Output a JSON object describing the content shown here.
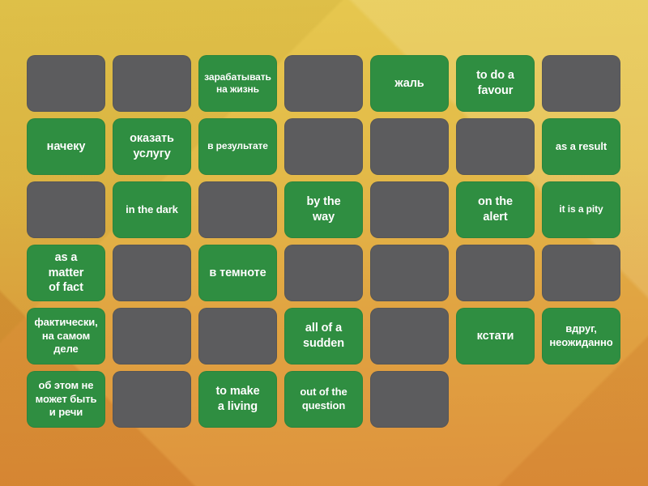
{
  "colors": {
    "card_revealed": "#2f8e41",
    "card_hidden": "#5c5c5e",
    "card_text": "#ffffff",
    "background_top": "#e6c84f",
    "background_bottom": "#de923d"
  },
  "board": {
    "rows": 6,
    "cols": 7,
    "cards": [
      {
        "row": 1,
        "col": 1,
        "state": "hidden",
        "text": ""
      },
      {
        "row": 1,
        "col": 2,
        "state": "hidden",
        "text": ""
      },
      {
        "row": 1,
        "col": 3,
        "state": "revealed",
        "text": "зарабатывать\nна жизнь"
      },
      {
        "row": 1,
        "col": 4,
        "state": "hidden",
        "text": ""
      },
      {
        "row": 1,
        "col": 5,
        "state": "revealed",
        "text": "жаль"
      },
      {
        "row": 1,
        "col": 6,
        "state": "revealed",
        "text": "to do a\nfavour"
      },
      {
        "row": 1,
        "col": 7,
        "state": "hidden",
        "text": ""
      },
      {
        "row": 2,
        "col": 1,
        "state": "revealed",
        "text": "начеку"
      },
      {
        "row": 2,
        "col": 2,
        "state": "revealed",
        "text": "оказать\nуслугу"
      },
      {
        "row": 2,
        "col": 3,
        "state": "revealed",
        "text": "в результате"
      },
      {
        "row": 2,
        "col": 4,
        "state": "hidden",
        "text": ""
      },
      {
        "row": 2,
        "col": 5,
        "state": "hidden",
        "text": ""
      },
      {
        "row": 2,
        "col": 6,
        "state": "hidden",
        "text": ""
      },
      {
        "row": 2,
        "col": 7,
        "state": "revealed",
        "text": "as a result"
      },
      {
        "row": 3,
        "col": 1,
        "state": "hidden",
        "text": ""
      },
      {
        "row": 3,
        "col": 2,
        "state": "revealed",
        "text": "in the dark"
      },
      {
        "row": 3,
        "col": 3,
        "state": "hidden",
        "text": ""
      },
      {
        "row": 3,
        "col": 4,
        "state": "revealed",
        "text": "by the\nway"
      },
      {
        "row": 3,
        "col": 5,
        "state": "hidden",
        "text": ""
      },
      {
        "row": 3,
        "col": 6,
        "state": "revealed",
        "text": "on the\nalert"
      },
      {
        "row": 3,
        "col": 7,
        "state": "revealed",
        "text": "it is a pity"
      },
      {
        "row": 4,
        "col": 1,
        "state": "revealed",
        "text": "as a\nmatter\nof fact"
      },
      {
        "row": 4,
        "col": 2,
        "state": "hidden",
        "text": ""
      },
      {
        "row": 4,
        "col": 3,
        "state": "revealed",
        "text": "в темноте"
      },
      {
        "row": 4,
        "col": 4,
        "state": "hidden",
        "text": ""
      },
      {
        "row": 4,
        "col": 5,
        "state": "hidden",
        "text": ""
      },
      {
        "row": 4,
        "col": 6,
        "state": "hidden",
        "text": ""
      },
      {
        "row": 4,
        "col": 7,
        "state": "hidden",
        "text": ""
      },
      {
        "row": 5,
        "col": 1,
        "state": "revealed",
        "text": "фактически,\nна самом\nделе"
      },
      {
        "row": 5,
        "col": 2,
        "state": "hidden",
        "text": ""
      },
      {
        "row": 5,
        "col": 3,
        "state": "hidden",
        "text": ""
      },
      {
        "row": 5,
        "col": 4,
        "state": "revealed",
        "text": "all of a\nsudden"
      },
      {
        "row": 5,
        "col": 5,
        "state": "hidden",
        "text": ""
      },
      {
        "row": 5,
        "col": 6,
        "state": "revealed",
        "text": "кстати"
      },
      {
        "row": 5,
        "col": 7,
        "state": "revealed",
        "text": "вдруг,\nнеожиданно"
      },
      {
        "row": 6,
        "col": 1,
        "state": "revealed",
        "text": "об этом не\nможет быть\nи речи"
      },
      {
        "row": 6,
        "col": 2,
        "state": "hidden",
        "text": ""
      },
      {
        "row": 6,
        "col": 3,
        "state": "revealed",
        "text": "to make\na living"
      },
      {
        "row": 6,
        "col": 4,
        "state": "revealed",
        "text": "out of the\nquestion"
      },
      {
        "row": 6,
        "col": 5,
        "state": "hidden",
        "text": ""
      }
    ]
  }
}
